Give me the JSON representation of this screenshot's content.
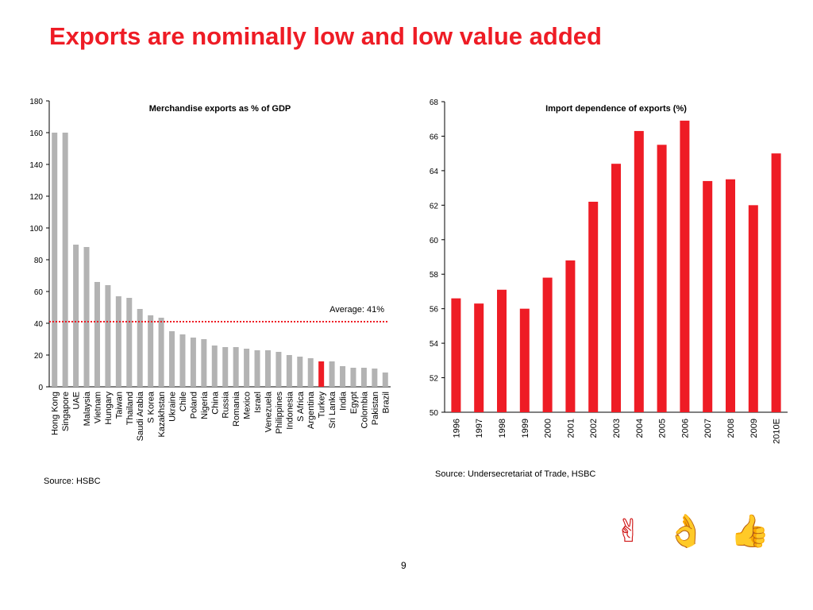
{
  "slide": {
    "title": "Exports are nominally low and low value added",
    "page_number": "9",
    "icons": [
      {
        "name": "victory-hand-icon",
        "glyph": "✌",
        "color": "#d01818"
      },
      {
        "name": "ok-hand-icon",
        "glyph": "👌",
        "color": "#d01818"
      },
      {
        "name": "thumbs-up-icon",
        "glyph": "👍",
        "color": "#d01818"
      }
    ]
  },
  "chart_data": [
    {
      "type": "bar",
      "title": "Merchandise exports as % of GDP",
      "source": "Source: HSBC",
      "categories": [
        "Hong Kong",
        "Singapore",
        "UAE",
        "Malaysia",
        "Vietnam",
        "Hungary",
        "Taiwan",
        "Thailand",
        "Saudi Arabia",
        "S Korea",
        "Kazakhstan",
        "Ukraine",
        "Chile",
        "Poland",
        "Nigeria",
        "China",
        "Russia",
        "Romania",
        "Mexico",
        "Israel",
        "Venezuela",
        "Philippines",
        "Indonesia",
        "S Africa",
        "Argentina",
        "Turkey",
        "Sri Lanka",
        "India",
        "Egypt",
        "Colombia",
        "Pakistan",
        "Brazil"
      ],
      "values": [
        160,
        160,
        89.5,
        88,
        66,
        64,
        57,
        56,
        49,
        45,
        43.5,
        35,
        33,
        31,
        30,
        26,
        25,
        25,
        24,
        23,
        23,
        22,
        20,
        19,
        18,
        16,
        16,
        13,
        12,
        12,
        11.5,
        9
      ],
      "highlight": "Turkey",
      "bar_color": "#b3b3b3",
      "highlight_color": "#ee1c25",
      "ylim": [
        0,
        180
      ],
      "yticks": [
        0,
        20,
        40,
        60,
        80,
        100,
        120,
        140,
        160,
        180
      ],
      "reference_line": {
        "value": 41,
        "label": "Average: 41%",
        "color": "#ee1c25"
      },
      "xlabel": "",
      "ylabel": ""
    },
    {
      "type": "bar",
      "title": "Import dependence of exports (%)",
      "source": "Source: Undersecretariat of Trade, HSBC",
      "categories": [
        "1996",
        "1997",
        "1998",
        "1999",
        "2000",
        "2001",
        "2002",
        "2003",
        "2004",
        "2005",
        "2006",
        "2007",
        "2008",
        "2009",
        "2010E"
      ],
      "values": [
        56.6,
        56.3,
        57.1,
        56.0,
        57.8,
        58.8,
        62.2,
        64.4,
        66.3,
        65.5,
        66.9,
        63.4,
        63.5,
        62.0,
        65.0
      ],
      "bar_color": "#ee1c25",
      "ylim": [
        50,
        68
      ],
      "yticks": [
        50,
        52,
        54,
        56,
        58,
        60,
        62,
        64,
        66,
        68
      ],
      "grid": true,
      "xlabel": "",
      "ylabel": ""
    }
  ]
}
